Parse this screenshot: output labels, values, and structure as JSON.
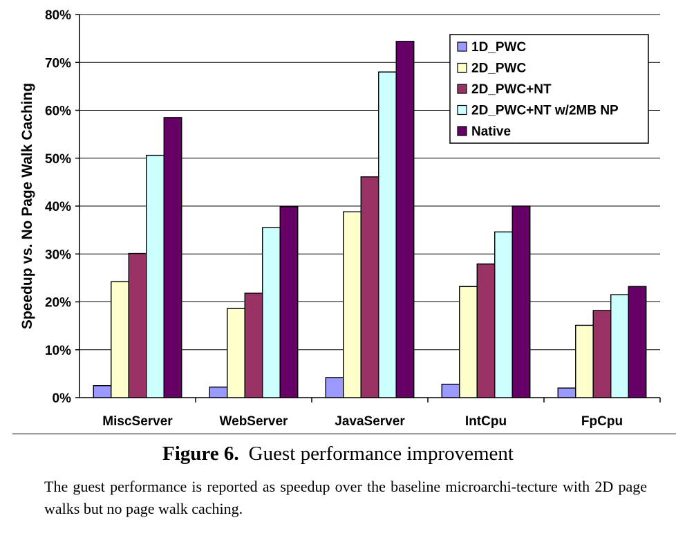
{
  "chart_data": {
    "type": "bar",
    "ylabel": "Speedup vs. No Page Walk Caching",
    "xlabel": "",
    "ylim": [
      0,
      80
    ],
    "yticks": [
      "0%",
      "10%",
      "20%",
      "30%",
      "40%",
      "50%",
      "60%",
      "70%",
      "80%"
    ],
    "grid": "horizontal",
    "legend_position": "top-right",
    "categories": [
      "MiscServer",
      "WebServer",
      "JavaServer",
      "IntCpu",
      "FpCpu"
    ],
    "series": [
      {
        "name": "1D_PWC",
        "color": "#9999ff",
        "values": [
          2.5,
          2.2,
          4.2,
          2.8,
          2.0
        ]
      },
      {
        "name": "2D_PWC",
        "color": "#ffffcc",
        "values": [
          24.2,
          18.6,
          38.8,
          23.2,
          15.1
        ]
      },
      {
        "name": "2D_PWC+NT",
        "color": "#993366",
        "values": [
          30.1,
          21.8,
          46.1,
          27.9,
          18.2
        ]
      },
      {
        "name": "2D_PWC+NT w/2MB NP",
        "color": "#ccffff",
        "values": [
          50.6,
          35.5,
          68.0,
          34.6,
          21.5
        ]
      },
      {
        "name": "Native",
        "color": "#660066",
        "values": [
          58.5,
          39.9,
          74.4,
          40.0,
          23.2
        ]
      }
    ]
  },
  "figure": {
    "number": "Figure 6.",
    "title": "Guest performance improvement",
    "description": "The guest performance is reported as speedup over the baseline microarchi-tecture with 2D page walks but no page walk caching."
  }
}
